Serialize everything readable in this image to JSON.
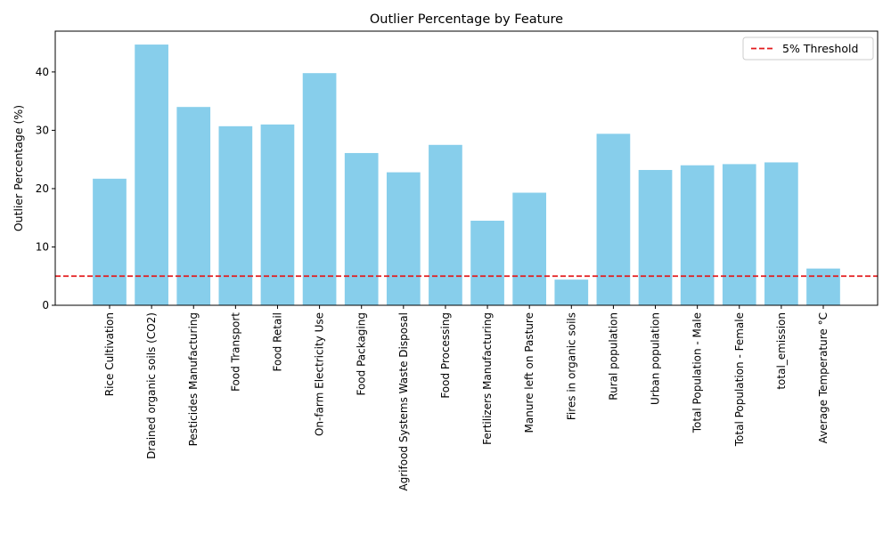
{
  "chart_data": {
    "type": "bar",
    "title": "Outlier Percentage by Feature",
    "xlabel": "",
    "ylabel": "Outlier Percentage (%)",
    "ylim": [
      0,
      47
    ],
    "yticks": [
      0,
      10,
      20,
      30,
      40
    ],
    "grid": false,
    "categories": [
      "Rice Cultivation",
      "Drained organic soils (CO2)",
      "Pesticides Manufacturing",
      "Food Transport",
      "Food Retail",
      "On-farm Electricity Use",
      "Food Packaging",
      "Agrifood Systems Waste Disposal",
      "Food Processing",
      "Fertilizers Manufacturing",
      "Manure left on Pasture",
      "Fires in organic soils",
      "Rural population",
      "Urban population",
      "Total Population - Male",
      "Total Population - Female",
      "total_emission",
      "Average Temperature °C"
    ],
    "values": [
      21.7,
      44.7,
      34.0,
      30.7,
      31.0,
      39.8,
      26.1,
      22.8,
      27.5,
      14.5,
      19.3,
      4.4,
      29.4,
      23.2,
      24.0,
      24.2,
      24.5,
      6.3
    ],
    "bar_color": "#87ceeb",
    "threshold": {
      "value": 5,
      "label": "5% Threshold",
      "color": "#e31a1c",
      "style": "dashed"
    },
    "legend_position": "top-right"
  }
}
